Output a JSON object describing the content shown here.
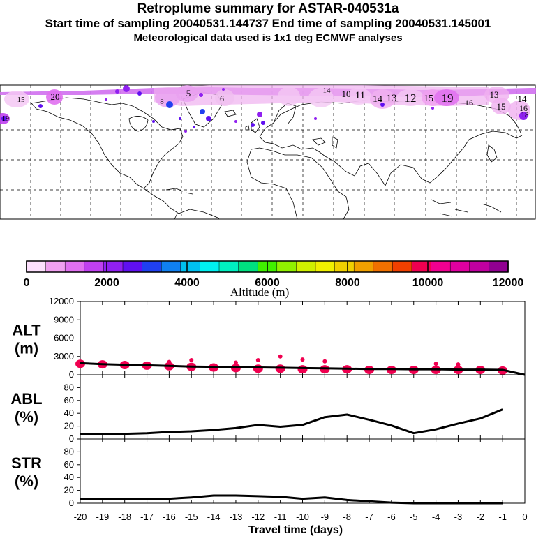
{
  "header": {
    "title": "Retroplume summary for ASTAR-040531a",
    "sampling_line": "Start time of sampling 20040531.144737     End time of sampling 20040531.145001",
    "met_line": "Meteorological data used is 1x1 deg ECMWF analyses"
  },
  "map": {
    "day_labels": [
      "15",
      "20",
      "8",
      "5",
      "6",
      "14",
      "10",
      "11",
      "14",
      "13",
      "12",
      "15",
      "19",
      "16",
      "13",
      "14",
      "15",
      "16",
      "18",
      "19"
    ]
  },
  "colorbar": {
    "colors": [
      "#fde0fd",
      "#f0a0f0",
      "#e070f0",
      "#c040f0",
      "#9020f0",
      "#6010f0",
      "#2040f0",
      "#1080f0",
      "#00c0f0",
      "#00f0f0",
      "#00f0c0",
      "#00e080",
      "#40f000",
      "#90f000",
      "#d0f000",
      "#f0f000",
      "#f0d000",
      "#f0a000",
      "#f07000",
      "#f04000",
      "#f00050",
      "#f00090",
      "#e000a0",
      "#c000a0",
      "#900090"
    ],
    "tick_labels": [
      "0",
      "2000",
      "4000",
      "6000",
      "8000",
      "10000",
      "12000"
    ],
    "axis_label": "Altitude (m)"
  },
  "chart_data": [
    {
      "type": "line",
      "panel": "ALT",
      "ylabel_lines": [
        "ALT",
        "(m)"
      ],
      "x": [
        -20,
        -19,
        -18,
        -17,
        -16,
        -15,
        -14,
        -13,
        -12,
        -11,
        -10,
        -9,
        -8,
        -7,
        -6,
        -5,
        -4,
        -3,
        -2,
        -1,
        0
      ],
      "y": [
        1900,
        1750,
        1650,
        1550,
        1450,
        1350,
        1300,
        1250,
        1200,
        1150,
        1100,
        1050,
        1000,
        950,
        950,
        900,
        900,
        850,
        850,
        800,
        0
      ],
      "ylim": [
        0,
        12000
      ],
      "yticks": [
        "0",
        "3000",
        "6000",
        "9000",
        "12000"
      ],
      "scatter": {
        "x": [
          -20,
          -19,
          -18,
          -17,
          -16,
          -15,
          -14,
          -13,
          -12,
          -11,
          -10,
          -9,
          -8,
          -7,
          -6,
          -5,
          -4,
          -3,
          -2,
          -1,
          -16,
          -15,
          -13,
          -12,
          -11,
          -10,
          -9,
          -4,
          -3
        ],
        "y": [
          1800,
          1700,
          1600,
          1500,
          1400,
          1300,
          1200,
          1100,
          1000,
          1000,
          900,
          900,
          900,
          800,
          800,
          800,
          800,
          800,
          800,
          700,
          2100,
          2400,
          2000,
          2400,
          3000,
          2500,
          2200,
          1800,
          1700
        ]
      },
      "color": "#000000",
      "marker_color": "#f00050"
    },
    {
      "type": "line",
      "panel": "ABL",
      "ylabel_lines": [
        "ABL",
        "(%)"
      ],
      "x": [
        -20,
        -19,
        -18,
        -17,
        -16,
        -15,
        -14,
        -13,
        -12,
        -11,
        -10,
        -9,
        -8,
        -7,
        -6,
        -5,
        -4,
        -3,
        -2,
        -1
      ],
      "y": [
        8,
        8,
        8,
        9,
        11,
        12,
        14,
        17,
        22,
        19,
        22,
        34,
        38,
        30,
        21,
        9,
        15,
        24,
        32,
        46
      ],
      "ylim": [
        0,
        100
      ],
      "yticks": [
        "0",
        "20",
        "40",
        "60",
        "80"
      ]
    },
    {
      "type": "line",
      "panel": "STR",
      "ylabel_lines": [
        "STR",
        "(%)"
      ],
      "x": [
        -20,
        -19,
        -18,
        -17,
        -16,
        -15,
        -14,
        -13,
        -12,
        -11,
        -10,
        -9,
        -8,
        -7,
        -6,
        -5,
        -4,
        -3,
        -2,
        -1
      ],
      "y": [
        7,
        7,
        7,
        7,
        7,
        9,
        12,
        12,
        11,
        10,
        7,
        9,
        5,
        3,
        1,
        0,
        0,
        0,
        0,
        0
      ],
      "ylim": [
        0,
        100
      ],
      "yticks": [
        "0",
        "20",
        "40",
        "60",
        "80"
      ],
      "xticks": [
        "-20",
        "-19",
        "-18",
        "-17",
        "-16",
        "-15",
        "-14",
        "-13",
        "-12",
        "-11",
        "-10",
        "-9",
        "-8",
        "-7",
        "-6",
        "-5",
        "-4",
        "-3",
        "-2",
        "-1",
        "0"
      ],
      "xlabel": "Travel time (days)"
    }
  ]
}
